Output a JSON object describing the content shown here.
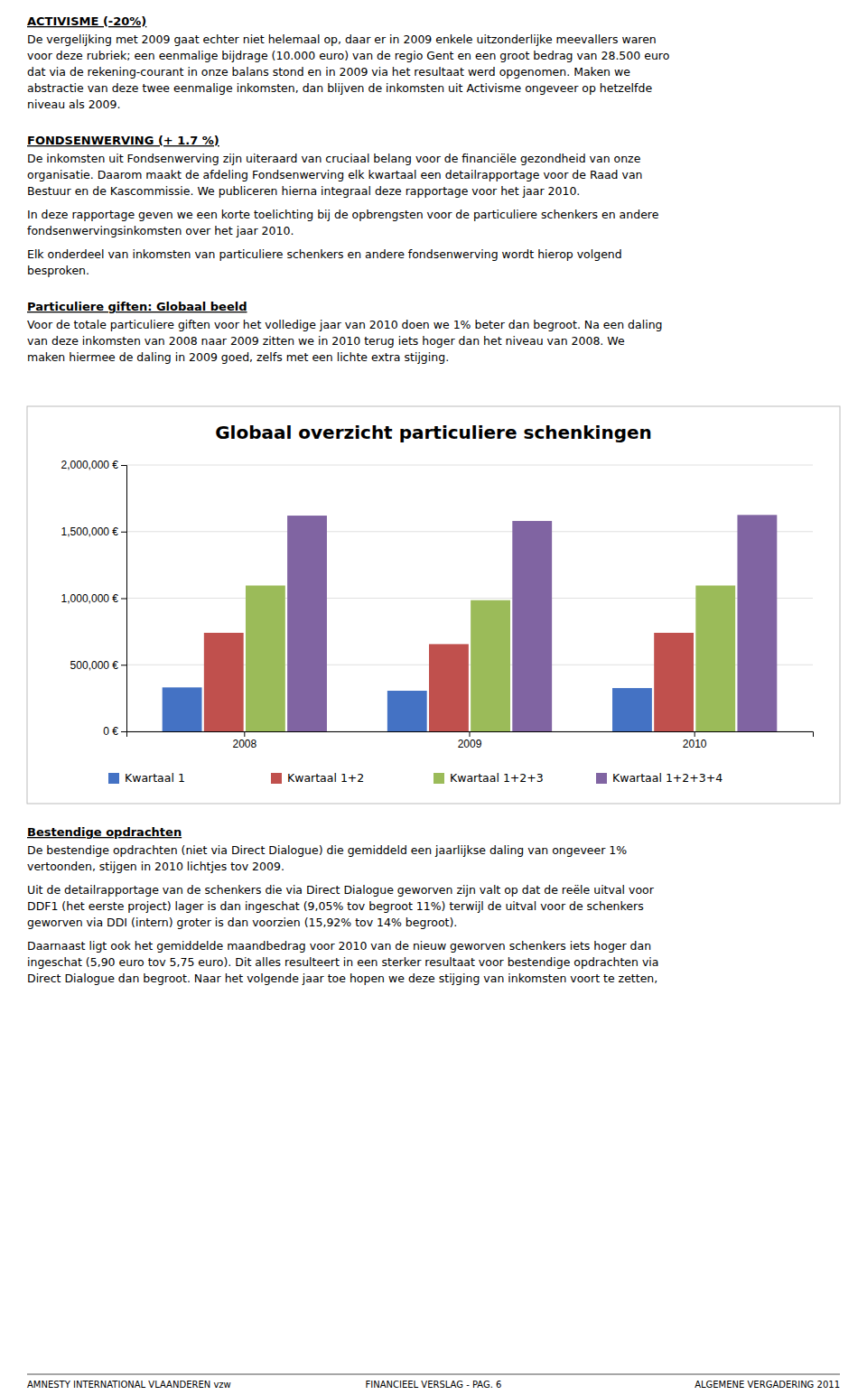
{
  "chart_data": {
    "type": "bar",
    "title": "Globaal overzicht particuliere schenkingen",
    "categories": [
      "2008",
      "2009",
      "2010"
    ],
    "series": [
      {
        "name": "Kwartaal 1",
        "color": "#4472C4",
        "values": [
          330000,
          305000,
          325000
        ]
      },
      {
        "name": "Kwartaal 1+2",
        "color": "#C0504D",
        "values": [
          740000,
          655000,
          740000
        ]
      },
      {
        "name": "Kwartaal 1+2+3",
        "color": "#9BBB59",
        "values": [
          1095000,
          985000,
          1095000
        ]
      },
      {
        "name": "Kwartaal 1+2+3+4",
        "color": "#8064A2",
        "values": [
          1620000,
          1580000,
          1625000
        ]
      }
    ],
    "ylim": [
      0,
      2000000
    ],
    "yticks": [
      {
        "value": 0,
        "label": "0 €"
      },
      {
        "value": 500000,
        "label": "500,000 €"
      },
      {
        "value": 1000000,
        "label": "1,000,000 €"
      },
      {
        "value": 1500000,
        "label": "1,500,000 €"
      },
      {
        "value": 2000000,
        "label": "2,000,000 €"
      }
    ],
    "grid": true,
    "legend": "bottom"
  },
  "page_text": {
    "before_chart": [
      {
        "heading": "ACTIVISME (-20%)",
        "paragraphs": [
          [
            "De vergelijking met 2009 gaat echter niet helemaal op, daar er in 2009 enkele uitzonderlijke meevallers waren",
            "voor deze rubriek; een eenmalige bijdrage (10.000 euro) van de regio Gent en een groot bedrag van 28.500 euro",
            "dat via de rekening-courant in onze balans stond en in 2009 via het resultaat werd opgenomen. Maken we",
            "abstractie van deze twee eenmalige inkomsten, dan blijven de inkomsten uit Activisme ongeveer op hetzelfde",
            "niveau als 2009."
          ]
        ]
      },
      {
        "heading": "FONDSENWERVING (+ 1.7 %)",
        "paragraphs": [
          [
            "De inkomsten uit Fondsenwerving zijn uiteraard van cruciaal belang voor de financiële gezondheid van onze",
            "organisatie. Daarom maakt de afdeling Fondsenwerving elk kwartaal een detailrapportage voor de Raad van",
            "Bestuur en de Kascommissie. We publiceren hierna integraal deze rapportage voor het jaar 2010."
          ],
          [
            "In deze rapportage geven we een korte toelichting bij de opbrengsten voor de particuliere schenkers en andere",
            "fondsenwervingsinkomsten over het jaar 2010."
          ],
          [
            "Elk onderdeel van inkomsten van particuliere schenkers en andere fondsenwerving wordt hierop volgend",
            "besproken."
          ]
        ]
      },
      {
        "heading": "Particuliere giften: Globaal beeld",
        "paragraphs": [
          [
            "Voor de totale particuliere giften voor het volledige jaar van 2010 doen we 1% beter dan begroot. Na een daling",
            "van deze inkomsten van 2008 naar 2009 zitten we in 2010 terug iets hoger dan het niveau van 2008. We",
            "maken hiermee de daling in 2009 goed, zelfs met een lichte extra stijging."
          ]
        ]
      }
    ],
    "after_chart": [
      {
        "heading": "Bestendige opdrachten",
        "paragraphs": [
          [
            "De bestendige opdrachten (niet via Direct Dialogue) die gemiddeld een jaarlijkse daling van ongeveer 1%",
            "vertoonden, stijgen in 2010 lichtjes tov 2009."
          ],
          [
            "Uit de detailrapportage van de schenkers die via Direct Dialogue geworven zijn valt op dat de reële uitval voor",
            "DDF1 (het eerste project) lager is dan ingeschat (9,05% tov begroot 11%) terwijl de uitval voor de schenkers",
            "geworven via DDI (intern) groter is dan voorzien (15,92% tov 14% begroot)."
          ],
          [
            "Daarnaast ligt ook het gemiddelde maandbedrag voor 2010 van de nieuw geworven schenkers iets hoger dan",
            "ingeschat (5,90 euro tov 5,75 euro). Dit alles resulteert in een sterker resultaat voor bestendige opdrachten via",
            "Direct Dialogue dan begroot. Naar het volgende jaar toe hopen we deze stijging van inkomsten voort te zetten,"
          ]
        ]
      }
    ],
    "footer": [
      "AMNESTY INTERNATIONAL VLAANDEREN vzw",
      "FINANCIEEL VERSLAG - PAG. 6",
      "ALGEMENE VERGADERING 2011"
    ]
  }
}
